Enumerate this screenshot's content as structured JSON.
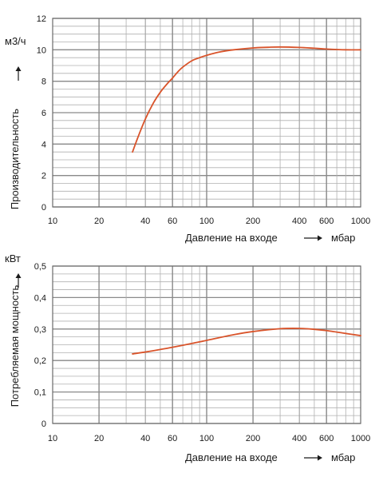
{
  "chart_data": [
    {
      "type": "line",
      "xscale": "log",
      "xlim": [
        10,
        1000
      ],
      "ylim": [
        0,
        12
      ],
      "xticks": [
        10,
        20,
        40,
        60,
        100,
        200,
        400,
        600,
        1000
      ],
      "xtick_labels": [
        "10",
        "20",
        "40",
        "60",
        "100",
        "200",
        "400",
        "600",
        "1000"
      ],
      "yticks": [
        0,
        2,
        4,
        6,
        8,
        10,
        12
      ],
      "ytick_labels": [
        "0",
        "2",
        "4",
        "6",
        "8",
        "10",
        "12"
      ],
      "xlabel": "Давление на входе",
      "xunit": "мбар",
      "ylabel": "Производительность",
      "yunit": "м3/ч",
      "grid": true,
      "line_color": "#d9542b",
      "series": [
        {
          "x": [
            33,
            36,
            40,
            45,
            50,
            55,
            60,
            65,
            70,
            80,
            90,
            100,
            120,
            150,
            200,
            250,
            300,
            400,
            500,
            600,
            800,
            1000
          ],
          "y": [
            3.5,
            4.5,
            5.6,
            6.6,
            7.3,
            7.8,
            8.2,
            8.6,
            8.9,
            9.3,
            9.5,
            9.65,
            9.85,
            10.0,
            10.12,
            10.16,
            10.18,
            10.15,
            10.1,
            10.05,
            10.0,
            10.0
          ]
        }
      ]
    },
    {
      "type": "line",
      "xscale": "log",
      "xlim": [
        10,
        1000
      ],
      "ylim": [
        0,
        0.5
      ],
      "xticks": [
        10,
        20,
        40,
        60,
        100,
        200,
        400,
        600,
        1000
      ],
      "xtick_labels": [
        "10",
        "20",
        "40",
        "60",
        "100",
        "200",
        "400",
        "600",
        "1000"
      ],
      "yticks": [
        0,
        0.1,
        0.2,
        0.3,
        0.4,
        0.5
      ],
      "ytick_labels": [
        "0",
        "0,1",
        "0,2",
        "0,3",
        "0,4",
        "0,5"
      ],
      "xlabel": "Давление на входе",
      "xunit": "мбар",
      "ylabel": "Потребляемая мощность",
      "yunit": "кВт",
      "grid": true,
      "line_color": "#d9542b",
      "series": [
        {
          "x": [
            33,
            40,
            50,
            60,
            80,
            100,
            150,
            200,
            300,
            400,
            500,
            600,
            800,
            1000
          ],
          "y": [
            0.221,
            0.227,
            0.235,
            0.242,
            0.254,
            0.264,
            0.282,
            0.292,
            0.301,
            0.302,
            0.299,
            0.295,
            0.286,
            0.279
          ]
        }
      ]
    }
  ]
}
